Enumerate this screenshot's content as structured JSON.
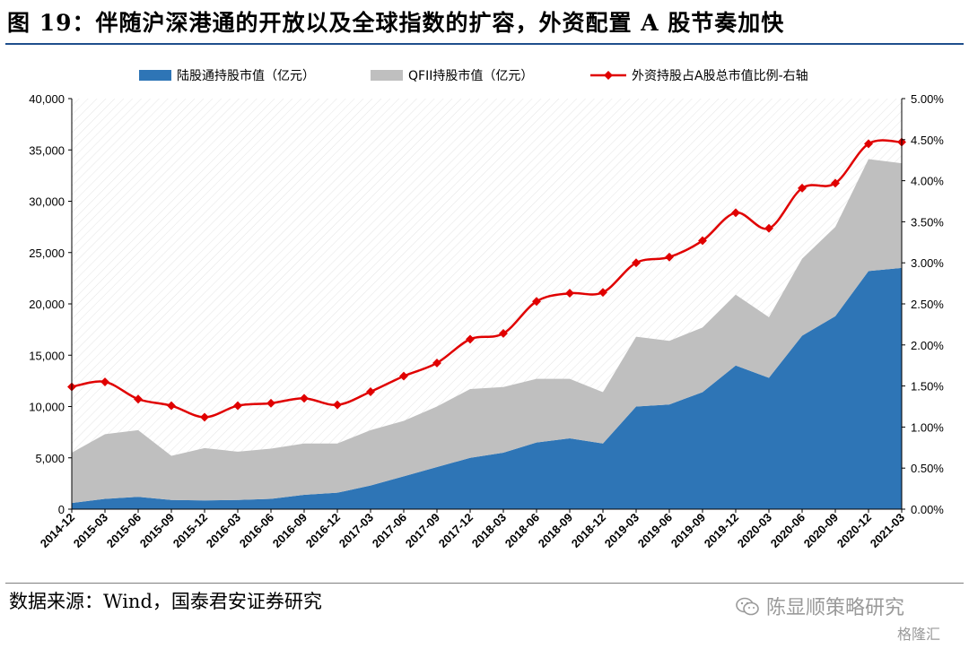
{
  "header": {
    "title": "图 19：伴随沪深港通的开放以及全球指数的扩容，外资配置 A 股节奏加快"
  },
  "footer": {
    "source": "数据来源：Wind，国泰君安证券研究",
    "watermark": "陈显顺策略研究",
    "logo": "格隆汇"
  },
  "icons": {
    "watermark": "wechat-icon"
  },
  "colors": {
    "blue": "#2e75b6",
    "gray": "#bfbfbf",
    "red": "#e00000"
  },
  "chart_data": {
    "type": "area",
    "categories": [
      "2014-12",
      "2015-03",
      "2015-06",
      "2015-09",
      "2015-12",
      "2016-03",
      "2016-06",
      "2016-09",
      "2016-12",
      "2017-03",
      "2017-06",
      "2017-09",
      "2017-12",
      "2018-03",
      "2018-06",
      "2018-09",
      "2018-12",
      "2019-03",
      "2019-06",
      "2019-09",
      "2019-12",
      "2020-03",
      "2020-06",
      "2020-09",
      "2020-12",
      "2021-03"
    ],
    "series": [
      {
        "name": "陆股通持股市值（亿元）",
        "type": "area",
        "axis": "left",
        "values": [
          600,
          1000,
          1200,
          900,
          850,
          900,
          1000,
          1400,
          1600,
          2300,
          3200,
          4100,
          5000,
          5500,
          6500,
          6900,
          6400,
          10000,
          10200,
          11400,
          14000,
          12800,
          16900,
          18800,
          23200,
          23500
        ]
      },
      {
        "name": "QFII持股市值（亿元）",
        "type": "area",
        "axis": "left",
        "values": [
          4900,
          6300,
          6500,
          4300,
          5100,
          4700,
          4900,
          5000,
          4800,
          5400,
          5400,
          5900,
          6700,
          6400,
          6200,
          5800,
          5000,
          6800,
          6200,
          6300,
          6900,
          5900,
          7500,
          8700,
          10900,
          10200
        ]
      },
      {
        "name": "外资持股占A股总市值比例-右轴",
        "type": "line",
        "axis": "right",
        "values": [
          1.49,
          1.55,
          1.34,
          1.26,
          1.12,
          1.26,
          1.29,
          1.35,
          1.27,
          1.43,
          1.62,
          1.78,
          2.07,
          2.14,
          2.53,
          2.63,
          2.64,
          3.0,
          3.07,
          3.27,
          3.61,
          3.42,
          3.91,
          3.97,
          4.45,
          4.47
        ]
      }
    ],
    "y_left": {
      "min": 0,
      "max": 40000,
      "step": 5000,
      "ticks": [
        "0",
        "5,000",
        "10,000",
        "15,000",
        "20,000",
        "25,000",
        "30,000",
        "35,000",
        "40,000"
      ]
    },
    "y_right": {
      "min": 0,
      "max": 5,
      "step": 0.5,
      "ticks": [
        "0.00%",
        "0.50%",
        "1.00%",
        "1.50%",
        "2.00%",
        "2.50%",
        "3.00%",
        "3.50%",
        "4.00%",
        "4.50%",
        "5.00%"
      ]
    },
    "legend_position": "top",
    "grid": false
  }
}
